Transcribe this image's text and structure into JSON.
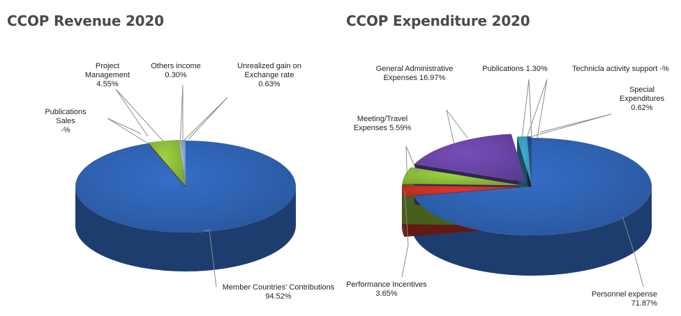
{
  "chart_data": [
    {
      "type": "pie",
      "title": "CCOP Revenue 2020",
      "colors": [
        "#2f63b3",
        "#7a1a14",
        "#8cbd3a",
        "#b0b0b0",
        "#7f9fd4"
      ],
      "slices": [
        {
          "label_lines": [
            "Member Countries' Contributions",
            "94.52%"
          ],
          "value": 94.52
        },
        {
          "label_lines": [
            "Publications",
            "Sales",
            "-%"
          ],
          "value": 0.0
        },
        {
          "label_lines": [
            "Project",
            "Management",
            "4.55%"
          ],
          "value": 4.55
        },
        {
          "label_lines": [
            "Others income",
            "0.30%"
          ],
          "value": 0.3
        },
        {
          "label_lines": [
            "Unrealized gain on",
            "Exchange rate",
            "0.63%"
          ],
          "value": 0.63
        }
      ]
    },
    {
      "type": "pie",
      "title": "CCOP Expenditure 2020",
      "colors": [
        "#2f63b3",
        "#c63127",
        "#8cbd3a",
        "#6a45a6",
        "#35a0c2",
        "#8a8a8a",
        "#1f4a8a"
      ],
      "slices": [
        {
          "label_lines": [
            "Personnel expense",
            "71.87%"
          ],
          "value": 71.87
        },
        {
          "label_lines": [
            "Performance Incentives",
            "3.65%"
          ],
          "value": 3.65
        },
        {
          "label_lines": [
            "Meeting/Travel",
            "Expenses 5.59%"
          ],
          "value": 5.59
        },
        {
          "label_lines": [
            "General Administrative",
            "Expenses 16.97%"
          ],
          "value": 16.97
        },
        {
          "label_lines": [
            "Publications 1.30%"
          ],
          "value": 1.3
        },
        {
          "label_lines": [
            "Technicla activity support -%"
          ],
          "value": 0.0
        },
        {
          "label_lines": [
            "Special",
            "Expenditures",
            "0.62%"
          ],
          "value": 0.62
        }
      ]
    }
  ]
}
